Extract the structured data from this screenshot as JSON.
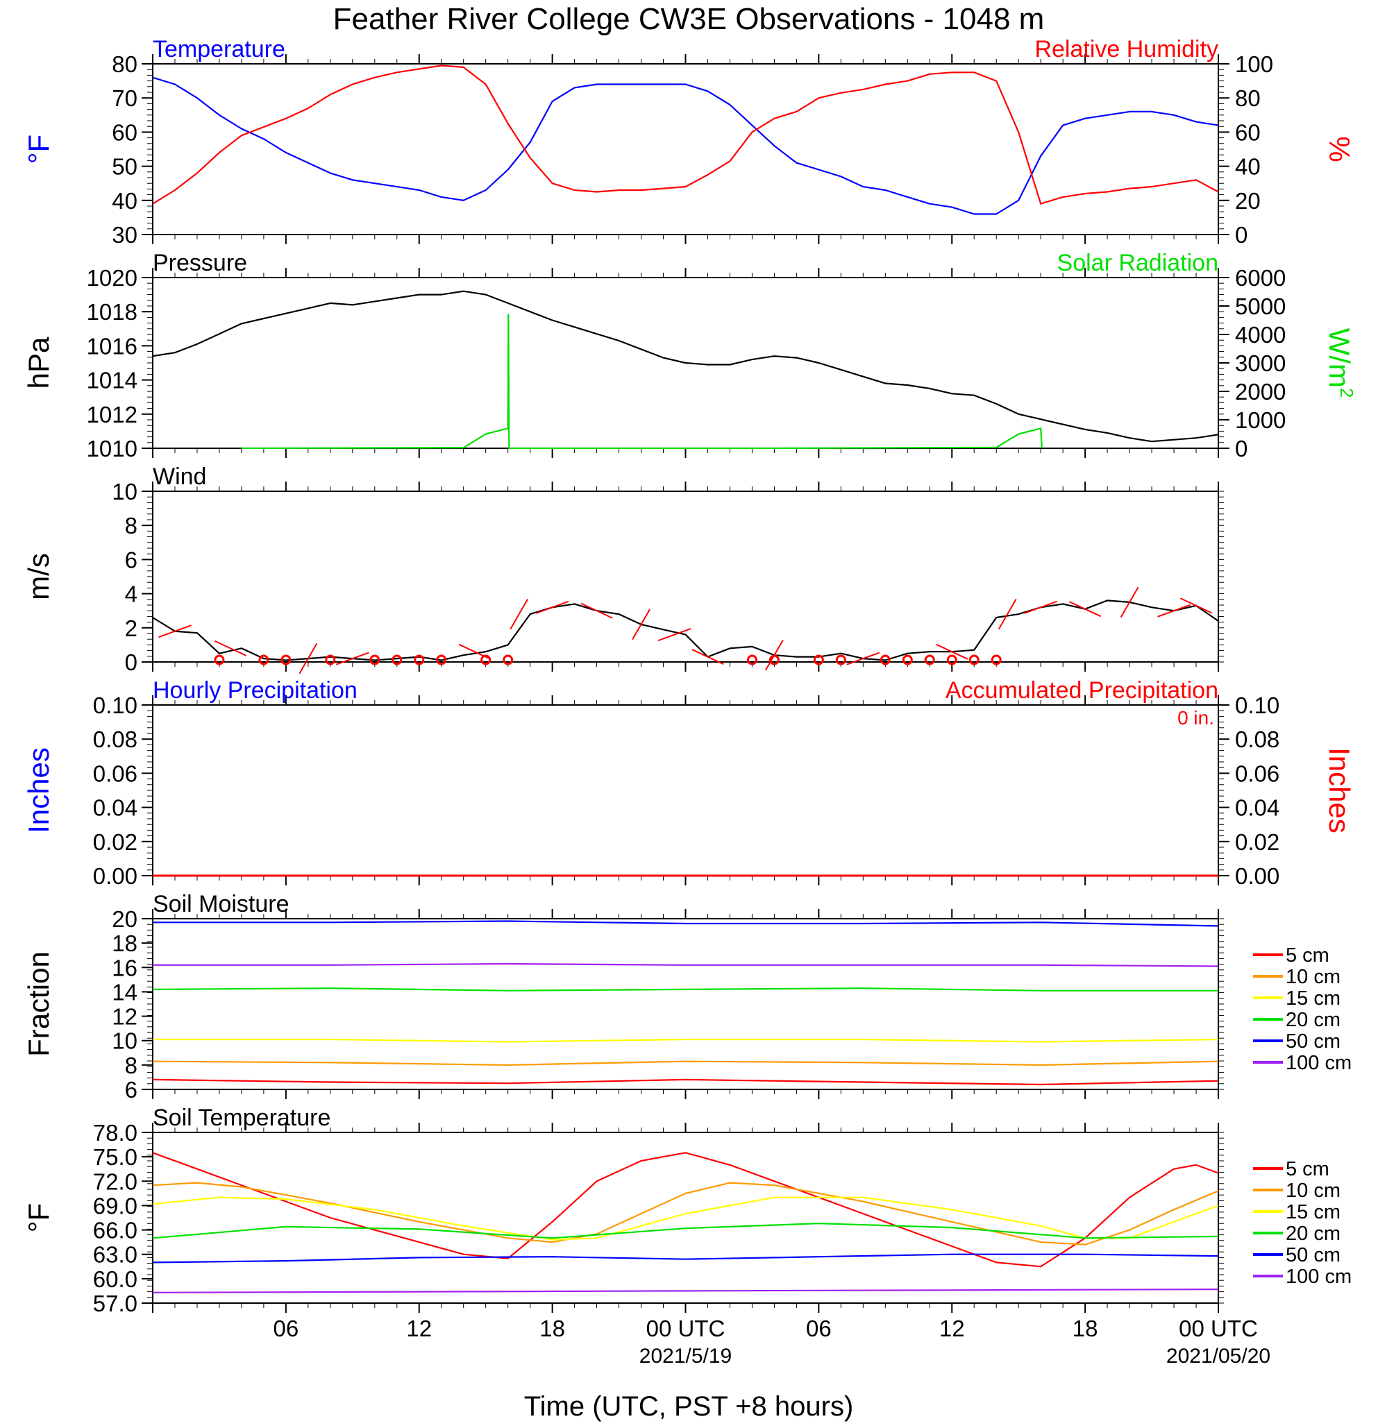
{
  "title": "Feather River College CW3E Observations - 1048 m",
  "xlabel": "Time (UTC, PST +8 hours)",
  "x_range_hours": [
    0,
    48
  ],
  "x_ticks": [
    {
      "hour": 6,
      "label": "06",
      "date": ""
    },
    {
      "hour": 12,
      "label": "12",
      "date": ""
    },
    {
      "hour": 18,
      "label": "18",
      "date": ""
    },
    {
      "hour": 24,
      "label": "00 UTC",
      "date": "2021/5/19"
    },
    {
      "hour": 30,
      "label": "06",
      "date": ""
    },
    {
      "hour": 36,
      "label": "12",
      "date": ""
    },
    {
      "hour": 42,
      "label": "18",
      "date": ""
    },
    {
      "hour": 48,
      "label": "00 UTC",
      "date": "2021/05/20"
    }
  ],
  "colors": {
    "temperature": "#0000ff",
    "relative_humidity": "#ff0000",
    "pressure": "#000000",
    "solar": "#00e000",
    "wind": "#000000",
    "wind_barb": "#ff0000",
    "precip_hourly": "#0000ff",
    "precip_accum": "#ff0000"
  },
  "chart_data": [
    {
      "id": "temp-rh",
      "type": "line",
      "title_left": "Temperature",
      "title_right": "Relative Humidity",
      "ylabel_left": "°F",
      "ylabel_right": "%",
      "ylim_left": [
        30,
        80
      ],
      "ylim_right": [
        0,
        100
      ],
      "yticks_left": [
        30,
        40,
        50,
        60,
        70,
        80
      ],
      "yticks_right": [
        0,
        20,
        40,
        60,
        80,
        100
      ],
      "series": [
        {
          "name": "Temperature",
          "axis": "left",
          "color": "#0000ff",
          "x": [
            0,
            1,
            2,
            3,
            4,
            5,
            6,
            7,
            8,
            9,
            10,
            11,
            12,
            13,
            14,
            15,
            16,
            17,
            18,
            19,
            20,
            21,
            22,
            23,
            24,
            25,
            26,
            27,
            28,
            29,
            30,
            31,
            32,
            33,
            34,
            35,
            36,
            37,
            38,
            39,
            40,
            41,
            42,
            43,
            44,
            45,
            46,
            47,
            48
          ],
          "y": [
            76,
            74,
            70,
            65,
            61,
            58,
            54,
            51,
            48,
            46,
            45,
            44,
            43,
            41,
            40,
            43,
            49,
            57,
            69,
            73,
            74,
            74,
            74,
            74,
            74,
            72,
            68,
            62,
            56,
            51,
            49,
            47,
            44,
            43,
            41,
            39,
            38,
            36,
            36,
            40,
            53,
            62,
            64,
            65,
            66,
            66,
            65,
            63,
            62
          ]
        },
        {
          "name": "Relative Humidity",
          "axis": "right",
          "color": "#ff0000",
          "x": [
            0,
            1,
            2,
            3,
            4,
            5,
            6,
            7,
            8,
            9,
            10,
            11,
            12,
            13,
            14,
            15,
            16,
            17,
            18,
            19,
            20,
            21,
            22,
            23,
            24,
            25,
            26,
            27,
            28,
            29,
            30,
            31,
            32,
            33,
            34,
            35,
            36,
            37,
            38,
            39,
            40,
            41,
            42,
            43,
            44,
            45,
            46,
            47,
            48
          ],
          "y": [
            18,
            26,
            36,
            48,
            58,
            63,
            68,
            74,
            82,
            88,
            92,
            95,
            97,
            99,
            98,
            88,
            65,
            45,
            30,
            26,
            25,
            26,
            26,
            27,
            28,
            35,
            43,
            60,
            68,
            72,
            80,
            83,
            85,
            88,
            90,
            94,
            95,
            95,
            90,
            60,
            18,
            22,
            24,
            25,
            27,
            28,
            30,
            32,
            25
          ]
        }
      ]
    },
    {
      "id": "pressure-solar",
      "type": "line",
      "title_left": "Pressure",
      "title_right": "Solar Radiation",
      "ylabel_left": "hPa",
      "ylabel_right": "W/m",
      "ylabel_right_sup": "2",
      "ylim_left": [
        1010,
        1020
      ],
      "ylim_right": [
        0,
        6000
      ],
      "yticks_left": [
        1010,
        1012,
        1014,
        1016,
        1018,
        1020
      ],
      "yticks_right": [
        0,
        1000,
        2000,
        3000,
        4000,
        5000,
        6000
      ],
      "series": [
        {
          "name": "Pressure",
          "axis": "left",
          "color": "#000000",
          "x": [
            0,
            1,
            2,
            3,
            4,
            5,
            6,
            7,
            8,
            9,
            10,
            11,
            12,
            13,
            14,
            15,
            16,
            17,
            18,
            19,
            20,
            21,
            22,
            23,
            24,
            25,
            26,
            27,
            28,
            29,
            30,
            31,
            32,
            33,
            34,
            35,
            36,
            37,
            38,
            39,
            40,
            41,
            42,
            43,
            44,
            45,
            46,
            47,
            48
          ],
          "y": [
            1015.4,
            1015.6,
            1016.1,
            1016.7,
            1017.3,
            1017.6,
            1017.9,
            1018.2,
            1018.5,
            1018.4,
            1018.6,
            1018.8,
            1019.0,
            1019.0,
            1019.2,
            1019.0,
            1018.5,
            1018.0,
            1017.5,
            1017.1,
            1016.7,
            1016.3,
            1015.8,
            1015.3,
            1015.0,
            1014.9,
            1014.9,
            1015.2,
            1015.4,
            1015.3,
            1015.0,
            1014.6,
            1014.2,
            1013.8,
            1013.7,
            1013.5,
            1013.2,
            1013.1,
            1012.6,
            1012.0,
            1011.7,
            1011.4,
            1011.1,
            1010.9,
            1010.6,
            1010.4,
            1010.5,
            1010.6,
            1010.8
          ]
        },
        {
          "name": "Solar Radiation",
          "axis": "right",
          "color": "#00e000",
          "x": [
            4,
            14,
            15,
            16,
            16.02,
            16.05,
            28,
            38,
            39,
            40,
            40.05
          ],
          "y": [
            0,
            20,
            500,
            700,
            4700,
            0,
            0,
            30,
            500,
            700,
            0
          ]
        }
      ]
    },
    {
      "id": "wind",
      "type": "line",
      "title_left": "Wind",
      "ylabel_left": "m/s",
      "ylim_left": [
        0,
        10
      ],
      "yticks_left": [
        0,
        2,
        4,
        6,
        8,
        10
      ],
      "series": [
        {
          "name": "Wind speed",
          "axis": "left",
          "color": "#000000",
          "x": [
            0,
            1,
            2,
            3,
            4,
            5,
            6,
            7,
            8,
            9,
            10,
            11,
            12,
            13,
            14,
            15,
            16,
            17,
            18,
            19,
            20,
            21,
            22,
            23,
            24,
            25,
            26,
            27,
            28,
            29,
            30,
            31,
            32,
            33,
            34,
            35,
            36,
            37,
            38,
            39,
            40,
            41,
            42,
            43,
            44,
            45,
            46,
            47,
            48
          ],
          "y": [
            2.6,
            1.8,
            1.7,
            0.5,
            0.8,
            0.2,
            0.1,
            0.2,
            0.3,
            0.2,
            0.1,
            0.2,
            0.3,
            0.1,
            0.4,
            0.6,
            1.0,
            2.8,
            3.2,
            3.4,
            3.0,
            2.8,
            2.2,
            1.9,
            1.6,
            0.3,
            0.8,
            0.9,
            0.4,
            0.3,
            0.3,
            0.5,
            0.2,
            0.1,
            0.5,
            0.6,
            0.6,
            0.7,
            2.6,
            2.8,
            3.2,
            3.4,
            3.1,
            3.6,
            3.5,
            3.2,
            3.0,
            3.3,
            2.4
          ]
        }
      ],
      "calm_circles_hours": [
        3,
        5,
        6,
        8,
        10,
        11,
        12,
        13,
        15,
        16,
        27,
        28,
        30,
        31,
        33,
        34,
        35,
        36,
        37,
        38
      ],
      "barb_hours": [
        1,
        3.5,
        7,
        9,
        14.5,
        16.5,
        18,
        20,
        22,
        23.5,
        25,
        28,
        32,
        36,
        38.5,
        40,
        42,
        44,
        46,
        47
      ]
    },
    {
      "id": "precip",
      "type": "line",
      "title_left": "Hourly Precipitation",
      "title_right": "Accumulated Precipitation",
      "annotation": "0 in.",
      "ylabel_left": "Inches",
      "ylabel_right": "Inches",
      "ylim_left": [
        0,
        0.1
      ],
      "ylim_right": [
        0,
        0.1
      ],
      "yticks_left": [
        "0.00",
        "0.02",
        "0.04",
        "0.06",
        "0.08",
        "0.10"
      ],
      "yticks_right": [
        "0.00",
        "0.02",
        "0.04",
        "0.06",
        "0.08",
        "0.10"
      ],
      "series": [
        {
          "name": "Hourly Precipitation",
          "axis": "left",
          "color": "#0000ff",
          "x": [
            0,
            48
          ],
          "y": [
            0,
            0
          ]
        },
        {
          "name": "Accumulated Precipitation",
          "axis": "right",
          "color": "#ff0000",
          "x": [
            0,
            48
          ],
          "y": [
            0,
            0
          ]
        }
      ]
    },
    {
      "id": "soil-moisture",
      "type": "line",
      "title_left": "Soil Moisture",
      "ylabel_left": "Fraction",
      "ylim_left": [
        6,
        20
      ],
      "yticks_left": [
        6,
        8,
        10,
        12,
        14,
        16,
        18,
        20
      ],
      "series": [
        {
          "name": "5 cm",
          "color": "#ff0000",
          "x": [
            0,
            8,
            16,
            24,
            32,
            40,
            48
          ],
          "y": [
            6.8,
            6.6,
            6.5,
            6.8,
            6.6,
            6.4,
            6.7
          ]
        },
        {
          "name": "10 cm",
          "color": "#ff9900",
          "x": [
            0,
            8,
            16,
            24,
            32,
            40,
            48
          ],
          "y": [
            8.3,
            8.2,
            8.0,
            8.3,
            8.2,
            8.0,
            8.3
          ]
        },
        {
          "name": "15 cm",
          "color": "#ffff00",
          "x": [
            0,
            8,
            16,
            24,
            32,
            40,
            48
          ],
          "y": [
            10.1,
            10.1,
            9.9,
            10.1,
            10.1,
            9.9,
            10.1
          ]
        },
        {
          "name": "20 cm",
          "color": "#00e000",
          "x": [
            0,
            8,
            16,
            24,
            32,
            40,
            48
          ],
          "y": [
            14.2,
            14.3,
            14.1,
            14.2,
            14.3,
            14.1,
            14.1
          ]
        },
        {
          "name": "50 cm",
          "color": "#0000ff",
          "x": [
            0,
            8,
            16,
            24,
            32,
            40,
            48
          ],
          "y": [
            19.7,
            19.7,
            19.8,
            19.6,
            19.6,
            19.7,
            19.4
          ]
        },
        {
          "name": "100 cm",
          "color": "#a020f0",
          "x": [
            0,
            8,
            16,
            24,
            32,
            40,
            48
          ],
          "y": [
            16.2,
            16.2,
            16.3,
            16.2,
            16.2,
            16.2,
            16.1
          ]
        }
      ]
    },
    {
      "id": "soil-temp",
      "type": "line",
      "title_left": "Soil Temperature",
      "ylabel_left": "°F",
      "ylim_left": [
        57,
        78
      ],
      "yticks_left": [
        "57.0",
        "60.0",
        "63.0",
        "66.0",
        "69.0",
        "72.0",
        "75.0",
        "78.0"
      ],
      "series": [
        {
          "name": "5 cm",
          "color": "#ff0000",
          "x": [
            0,
            2,
            4,
            6,
            8,
            10,
            12,
            14,
            16,
            18,
            20,
            22,
            23,
            24,
            26,
            28,
            30,
            32,
            34,
            36,
            38,
            40,
            42,
            44,
            46,
            47,
            48
          ],
          "y": [
            75.5,
            73.5,
            71.5,
            69.5,
            67.5,
            66,
            64.5,
            63,
            62.5,
            67,
            72,
            74.5,
            75,
            75.5,
            74,
            72,
            70,
            68,
            66,
            64,
            62,
            61.5,
            65,
            70,
            73.5,
            74,
            73
          ]
        },
        {
          "name": "10 cm",
          "color": "#ff9900",
          "x": [
            0,
            2,
            4,
            6,
            8,
            12,
            16,
            18,
            20,
            22,
            24,
            26,
            28,
            32,
            36,
            40,
            42,
            44,
            46,
            48
          ],
          "y": [
            71.5,
            71.8,
            71.3,
            70.3,
            69.3,
            67,
            65,
            64.5,
            65.5,
            68,
            70.5,
            71.8,
            71.5,
            69.5,
            67,
            64.5,
            64.2,
            66,
            68.5,
            70.8
          ]
        },
        {
          "name": "15 cm",
          "color": "#ffff00",
          "x": [
            0,
            3,
            6,
            10,
            14,
            18,
            20,
            24,
            28,
            32,
            36,
            40,
            42,
            44,
            46,
            48
          ],
          "y": [
            69.2,
            70,
            69.8,
            68.5,
            66.5,
            64.8,
            65,
            68,
            70,
            70,
            68.5,
            66.5,
            65,
            65,
            67,
            69
          ]
        },
        {
          "name": "20 cm",
          "color": "#00e000",
          "x": [
            0,
            6,
            12,
            18,
            24,
            30,
            36,
            42,
            48
          ],
          "y": [
            65,
            66.4,
            66.1,
            65,
            66.2,
            66.8,
            66.3,
            65,
            65.2
          ]
        },
        {
          "name": "50 cm",
          "color": "#0000ff",
          "x": [
            0,
            6,
            12,
            18,
            24,
            30,
            36,
            42,
            48
          ],
          "y": [
            62,
            62.2,
            62.6,
            62.7,
            62.4,
            62.7,
            63.0,
            63.0,
            62.8
          ]
        },
        {
          "name": "100 cm",
          "color": "#a020f0",
          "x": [
            0,
            12,
            24,
            36,
            48
          ],
          "y": [
            58.3,
            58.4,
            58.5,
            58.6,
            58.7
          ]
        }
      ]
    }
  ]
}
